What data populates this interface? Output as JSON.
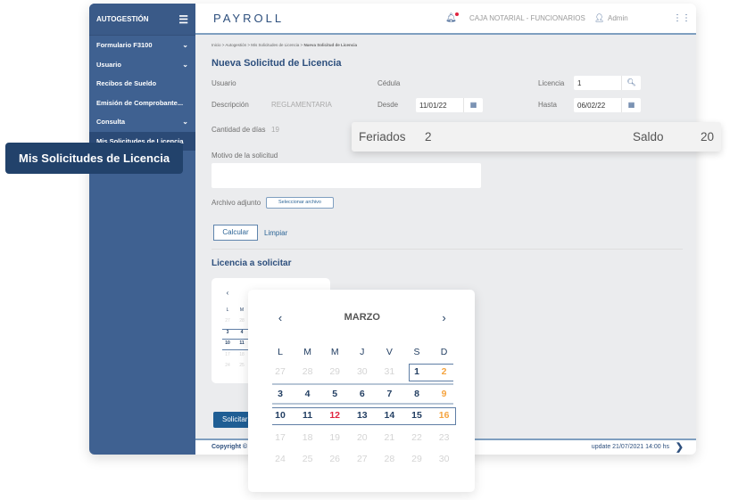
{
  "sidebar": {
    "title": "AUTOGESTIÓN",
    "items": [
      {
        "label": "Formulario F3100",
        "chevron": true
      },
      {
        "label": "Usuario",
        "chevron": true
      },
      {
        "label": "Recibos de Sueldo",
        "chevron": false
      },
      {
        "label": "Emisión de Comprobante...",
        "chevron": false
      },
      {
        "label": "Consulta",
        "chevron": true
      },
      {
        "label": "Mis Solicitudes de Licencia",
        "chevron": false,
        "active": true
      }
    ]
  },
  "tooltip": "Mis Solicitudes de Licencia",
  "header": {
    "logo": "PAYROLL",
    "org": "CAJA NOTARIAL - FUNCIONARIOS",
    "user": "Admin"
  },
  "breadcrumb": {
    "path": "Inicio > Autogestión > Mis Solicitudes de Licencia > ",
    "current": "Nueva Solicitud de Licencia"
  },
  "form": {
    "title": "Nueva Solicitud de Licencia",
    "usuario": "Usuario",
    "cedula": "Cédula",
    "licencia": "Licencia",
    "licencia_value": "1",
    "descripcion": "Descripción",
    "descripcion_value": "REGLAMENTARIA",
    "desde": "Desde",
    "desde_value": "11/01/22",
    "hasta": "Hasta",
    "hasta_value": "06/02/22",
    "cantidad": "Cantidad de días",
    "cantidad_value": "19",
    "motivo": "Motivo de la solicitud",
    "motivo_value": "",
    "archivo": "Archivo adjunto",
    "seleccionar": "Seleccionar archivo",
    "calcular": "Calcular",
    "limpiar": "Limpiar",
    "section": "Licencia a solicitar",
    "solicitar": "Solicitar"
  },
  "summary": {
    "feriados_label": "Feriados",
    "feriados": "2",
    "saldo_label": "Saldo",
    "saldo": "20"
  },
  "footer": {
    "copyright": "Copyright ©",
    "update": "update 21/07/2021 14:00 hs"
  },
  "calendar": {
    "month": "MARZO",
    "weekdays": [
      "L",
      "M",
      "M",
      "J",
      "V",
      "S",
      "D"
    ],
    "weeks": [
      [
        "27",
        "28",
        "29",
        "30",
        "31",
        "1",
        "2"
      ],
      [
        "3",
        "4",
        "5",
        "6",
        "7",
        "8",
        "9"
      ],
      [
        "10",
        "11",
        "12",
        "13",
        "14",
        "15",
        "16"
      ],
      [
        "17",
        "18",
        "19",
        "20",
        "21",
        "22",
        "23"
      ],
      [
        "24",
        "25",
        "26",
        "27",
        "28",
        "29",
        "30"
      ]
    ],
    "colors": {
      "normal": "#233f63",
      "muted": "#d4d4d4",
      "weekend": "#f5a440",
      "holiday": "#e0243f"
    }
  }
}
